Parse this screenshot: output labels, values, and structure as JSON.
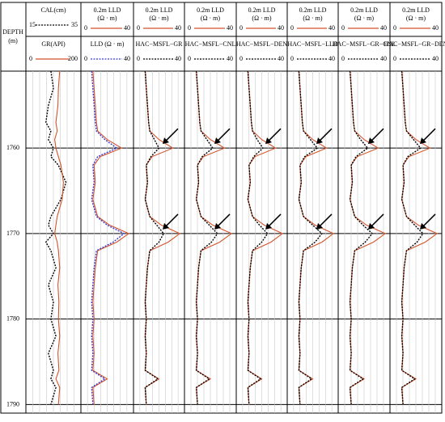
{
  "depth_track": {
    "label": "DEPTH",
    "unit": "(m)",
    "ylim": [
      1751,
      1791
    ],
    "yticks": [
      1760,
      1770,
      1780,
      1790
    ]
  },
  "chart_data": [
    {
      "type": "line",
      "grid": true,
      "ylim": [
        1751,
        1791
      ],
      "depth": [
        1751,
        1753,
        1755,
        1757,
        1758,
        1759,
        1760,
        1761,
        1762,
        1764,
        1766,
        1768,
        1769,
        1770,
        1771,
        1772,
        1774,
        1776,
        1778,
        1780,
        1782,
        1784,
        1786,
        1787,
        1788,
        1790
      ],
      "series": [
        {
          "name": "CAL(cm)",
          "color": "#000000",
          "dashed": true,
          "xlim": [
            15,
            35
          ],
          "values": [
            24,
            25,
            23,
            22,
            24,
            23,
            25,
            24,
            27,
            30,
            28,
            24,
            23,
            25,
            22,
            24,
            26,
            23,
            25,
            24,
            26,
            23,
            25,
            24,
            26,
            24
          ]
        },
        {
          "name": "GR(API)",
          "color": "#d4522a",
          "dashed": false,
          "xlim": [
            0,
            200
          ],
          "values": [
            125,
            120,
            118,
            110,
            115,
            105,
            110,
            120,
            130,
            140,
            135,
            115,
            110,
            105,
            115,
            120,
            125,
            118,
            122,
            120,
            125,
            118,
            122,
            110,
            125,
            120
          ]
        }
      ]
    },
    {
      "type": "line",
      "grid": true,
      "ylim": [
        1751,
        1791
      ],
      "depth": [
        1751,
        1753,
        1755,
        1757,
        1758,
        1759,
        1760,
        1761,
        1762,
        1764,
        1766,
        1768,
        1769,
        1770,
        1771,
        1772,
        1774,
        1776,
        1778,
        1780,
        1782,
        1784,
        1786,
        1787,
        1788,
        1790
      ],
      "series": [
        {
          "name": "0.2m LLD",
          "unit": "(Ω · m)",
          "color": "#d4522a",
          "dashed": false,
          "xlim": [
            0,
            40
          ],
          "values": [
            8,
            9,
            10,
            11,
            12,
            20,
            32,
            14,
            9,
            10,
            8,
            12,
            22,
            38,
            28,
            12,
            10,
            9,
            8,
            9,
            8,
            9,
            8,
            20,
            8,
            9
          ]
        },
        {
          "name": "LLD (Ω · m)",
          "color": "#3a3ad0",
          "dashed": true,
          "xlim": [
            0,
            40
          ],
          "values": [
            7,
            8,
            9,
            10,
            11,
            18,
            28,
            12,
            8,
            9,
            7,
            11,
            20,
            34,
            25,
            11,
            9,
            8,
            7,
            8,
            7,
            8,
            7,
            18,
            7,
            8
          ]
        }
      ]
    },
    {
      "type": "line",
      "grid": true,
      "ylim": [
        1751,
        1791
      ],
      "depth": [
        1751,
        1753,
        1755,
        1757,
        1758,
        1759,
        1760,
        1761,
        1762,
        1764,
        1766,
        1768,
        1769,
        1770,
        1771,
        1772,
        1774,
        1776,
        1778,
        1780,
        1782,
        1784,
        1786,
        1787,
        1788,
        1790
      ],
      "series": [
        {
          "name": "0.2m LLD",
          "unit": "(Ω · m)",
          "color": "#d4522a",
          "dashed": false,
          "xlim": [
            0,
            40
          ],
          "values": [
            8,
            9,
            10,
            11,
            12,
            20,
            32,
            14,
            9,
            10,
            8,
            12,
            22,
            38,
            28,
            12,
            10,
            9,
            8,
            9,
            8,
            9,
            8,
            20,
            8,
            9
          ]
        },
        {
          "name": "HAC−MSFL−GR",
          "color": "#000000",
          "dashed": true,
          "xlim": [
            0,
            40
          ],
          "values": [
            8,
            9,
            10,
            11,
            12,
            16,
            20,
            13,
            9,
            10,
            8,
            12,
            18,
            24,
            20,
            12,
            10,
            9,
            8,
            9,
            8,
            9,
            8,
            19,
            8,
            9
          ]
        }
      ]
    },
    {
      "type": "line",
      "grid": true,
      "ylim": [
        1751,
        1791
      ],
      "depth": [
        1751,
        1753,
        1755,
        1757,
        1758,
        1759,
        1760,
        1761,
        1762,
        1764,
        1766,
        1768,
        1769,
        1770,
        1771,
        1772,
        1774,
        1776,
        1778,
        1780,
        1782,
        1784,
        1786,
        1787,
        1788,
        1790
      ],
      "series": [
        {
          "name": "0.2m LLD",
          "unit": "(Ω · m)",
          "color": "#d4522a",
          "dashed": false,
          "xlim": [
            0,
            40
          ],
          "values": [
            8,
            9,
            10,
            11,
            12,
            20,
            32,
            14,
            9,
            10,
            8,
            12,
            22,
            38,
            28,
            12,
            10,
            9,
            8,
            9,
            8,
            9,
            8,
            20,
            8,
            9
          ]
        },
        {
          "name": "HAC−MSFL−CNL",
          "color": "#000000",
          "dashed": true,
          "xlim": [
            0,
            40
          ],
          "values": [
            8,
            9,
            10,
            11,
            12,
            17,
            22,
            13,
            9,
            10,
            8,
            12,
            19,
            26,
            21,
            12,
            10,
            9,
            8,
            9,
            8,
            9,
            8,
            19,
            8,
            9
          ]
        }
      ]
    },
    {
      "type": "line",
      "grid": true,
      "ylim": [
        1751,
        1791
      ],
      "depth": [
        1751,
        1753,
        1755,
        1757,
        1758,
        1759,
        1760,
        1761,
        1762,
        1764,
        1766,
        1768,
        1769,
        1770,
        1771,
        1772,
        1774,
        1776,
        1778,
        1780,
        1782,
        1784,
        1786,
        1787,
        1788,
        1790
      ],
      "series": [
        {
          "name": "0.2m LLD",
          "unit": "(Ω · m)",
          "color": "#d4522a",
          "dashed": false,
          "xlim": [
            0,
            40
          ],
          "values": [
            8,
            9,
            10,
            11,
            12,
            20,
            32,
            14,
            9,
            10,
            8,
            12,
            22,
            38,
            28,
            12,
            10,
            9,
            8,
            9,
            8,
            9,
            8,
            20,
            8,
            9
          ]
        },
        {
          "name": "HAC−MSFL−DEN",
          "color": "#000000",
          "dashed": true,
          "xlim": [
            0,
            40
          ],
          "values": [
            8,
            9,
            10,
            11,
            12,
            16,
            21,
            13,
            9,
            10,
            8,
            12,
            18,
            25,
            20,
            12,
            10,
            9,
            8,
            9,
            8,
            9,
            8,
            19,
            8,
            9
          ]
        }
      ]
    },
    {
      "type": "line",
      "grid": true,
      "ylim": [
        1751,
        1791
      ],
      "depth": [
        1751,
        1753,
        1755,
        1757,
        1758,
        1759,
        1760,
        1761,
        1762,
        1764,
        1766,
        1768,
        1769,
        1770,
        1771,
        1772,
        1774,
        1776,
        1778,
        1780,
        1782,
        1784,
        1786,
        1787,
        1788,
        1790
      ],
      "series": [
        {
          "name": "0.2m LLD",
          "unit": "(Ω · m)",
          "color": "#d4522a",
          "dashed": false,
          "xlim": [
            0,
            40
          ],
          "values": [
            8,
            9,
            10,
            11,
            12,
            20,
            32,
            14,
            9,
            10,
            8,
            12,
            22,
            38,
            28,
            12,
            10,
            9,
            8,
            9,
            8,
            9,
            8,
            20,
            8,
            9
          ]
        },
        {
          "name": "HAC−MSFL−LLD",
          "color": "#000000",
          "dashed": true,
          "xlim": [
            0,
            40
          ],
          "values": [
            8,
            9,
            10,
            11,
            12,
            18,
            24,
            13,
            9,
            10,
            8,
            12,
            20,
            28,
            22,
            12,
            10,
            9,
            8,
            9,
            8,
            9,
            8,
            19,
            8,
            9
          ]
        }
      ]
    },
    {
      "type": "line",
      "grid": true,
      "ylim": [
        1751,
        1791
      ],
      "depth": [
        1751,
        1753,
        1755,
        1757,
        1758,
        1759,
        1760,
        1761,
        1762,
        1764,
        1766,
        1768,
        1769,
        1770,
        1771,
        1772,
        1774,
        1776,
        1778,
        1780,
        1782,
        1784,
        1786,
        1787,
        1788,
        1790
      ],
      "series": [
        {
          "name": "0.2m LLD",
          "unit": "(Ω · m)",
          "color": "#d4522a",
          "dashed": false,
          "xlim": [
            0,
            40
          ],
          "values": [
            8,
            9,
            10,
            11,
            12,
            20,
            32,
            14,
            9,
            10,
            8,
            12,
            22,
            38,
            28,
            12,
            10,
            9,
            8,
            9,
            8,
            9,
            8,
            20,
            8,
            9
          ]
        },
        {
          "name": "HAC−MSFL−GR−CNL",
          "color": "#000000",
          "dashed": true,
          "xlim": [
            0,
            40
          ],
          "values": [
            8,
            9,
            10,
            11,
            12,
            17,
            23,
            13,
            9,
            10,
            8,
            12,
            19,
            27,
            21,
            12,
            10,
            9,
            8,
            9,
            8,
            9,
            8,
            19,
            8,
            9
          ]
        }
      ]
    },
    {
      "type": "line",
      "grid": true,
      "ylim": [
        1751,
        1791
      ],
      "depth": [
        1751,
        1753,
        1755,
        1757,
        1758,
        1759,
        1760,
        1761,
        1762,
        1764,
        1766,
        1768,
        1769,
        1770,
        1771,
        1772,
        1774,
        1776,
        1778,
        1780,
        1782,
        1784,
        1786,
        1787,
        1788,
        1790
      ],
      "series": [
        {
          "name": "0.2m LLD",
          "unit": "(Ω · m)",
          "color": "#d4522a",
          "dashed": false,
          "xlim": [
            0,
            40
          ],
          "values": [
            8,
            9,
            10,
            11,
            12,
            20,
            32,
            14,
            9,
            10,
            8,
            12,
            22,
            38,
            28,
            12,
            10,
            9,
            8,
            9,
            8,
            9,
            8,
            20,
            8,
            9
          ]
        },
        {
          "name": "HAC−MSFL−GR−DEN",
          "color": "#000000",
          "dashed": true,
          "xlim": [
            0,
            40
          ],
          "values": [
            8,
            9,
            10,
            11,
            12,
            18,
            24,
            13,
            9,
            10,
            8,
            12,
            19,
            26,
            21,
            12,
            10,
            9,
            8,
            9,
            8,
            9,
            8,
            19,
            8,
            9
          ]
        }
      ]
    }
  ]
}
